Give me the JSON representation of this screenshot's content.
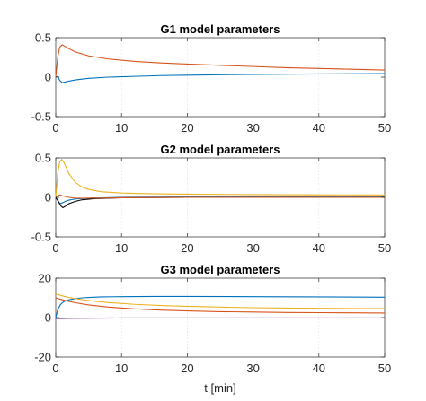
{
  "chart_data": [
    {
      "type": "line",
      "title": "G1 model parameters",
      "xlabel": "",
      "ylabel": "",
      "xlim": [
        0,
        50
      ],
      "ylim": [
        -0.5,
        0.5
      ],
      "xticks": [
        0,
        10,
        20,
        30,
        40,
        50
      ],
      "yticks": [
        -0.5,
        0,
        0.5
      ],
      "xtick_labels": [
        "0",
        "10",
        "20",
        "30",
        "40",
        "50"
      ],
      "ytick_labels": [
        "-0.5",
        "0",
        "0.5"
      ],
      "grid": "vertical",
      "series": [
        {
          "color": "#D95319",
          "x": [
            0,
            0.3,
            0.6,
            1,
            1.4,
            2,
            3,
            5,
            8,
            12,
            16,
            20,
            25,
            30,
            35,
            40,
            45,
            50
          ],
          "y": [
            0,
            0.25,
            0.38,
            0.41,
            0.39,
            0.36,
            0.32,
            0.27,
            0.23,
            0.2,
            0.18,
            0.165,
            0.15,
            0.135,
            0.12,
            0.11,
            0.1,
            0.09
          ]
        },
        {
          "color": "#0072BD",
          "x": [
            0,
            0.3,
            0.6,
            1,
            1.5,
            2,
            3,
            5,
            8,
            12,
            16,
            20,
            30,
            40,
            50
          ],
          "y": [
            0,
            0.01,
            -0.04,
            -0.07,
            -0.06,
            -0.05,
            -0.035,
            -0.015,
            0,
            0.01,
            0.02,
            0.025,
            0.035,
            0.04,
            0.045
          ]
        }
      ]
    },
    {
      "type": "line",
      "title": "G2 model parameters",
      "xlabel": "",
      "ylabel": "",
      "xlim": [
        0,
        50
      ],
      "ylim": [
        -0.5,
        0.5
      ],
      "xticks": [
        0,
        10,
        20,
        30,
        40,
        50
      ],
      "yticks": [
        -0.5,
        0,
        0.5
      ],
      "xtick_labels": [
        "0",
        "10",
        "20",
        "30",
        "40",
        "50"
      ],
      "ytick_labels": [
        "-0.5",
        "0",
        "0.5"
      ],
      "grid": "vertical",
      "series": [
        {
          "color": "#EDB120",
          "x": [
            0,
            0.3,
            0.6,
            0.9,
            1.2,
            1.6,
            2,
            3,
            4,
            5,
            7,
            10,
            15,
            20,
            30,
            40,
            50
          ],
          "y": [
            0,
            0.3,
            0.45,
            0.48,
            0.45,
            0.38,
            0.3,
            0.19,
            0.13,
            0.1,
            0.07,
            0.055,
            0.045,
            0.04,
            0.035,
            0.032,
            0.03
          ]
        },
        {
          "color": "#0072BD",
          "x": [
            0,
            0.3,
            0.6,
            1,
            1.5,
            2,
            3,
            5,
            10,
            20,
            50
          ],
          "y": [
            0,
            -0.04,
            -0.08,
            -0.07,
            -0.05,
            -0.035,
            -0.02,
            -0.01,
            0,
            0.005,
            0.01
          ]
        },
        {
          "color": "#000000",
          "x": [
            0,
            0.4,
            0.8,
            1.1,
            1.5,
            2,
            3,
            4,
            6,
            10,
            20,
            50
          ],
          "y": [
            0,
            -0.05,
            -0.11,
            -0.13,
            -0.11,
            -0.08,
            -0.05,
            -0.03,
            -0.015,
            -0.005,
            0,
            0
          ]
        },
        {
          "color": "#D95319",
          "x": [
            0,
            0.3,
            0.6,
            1,
            1.5,
            2,
            3,
            5,
            10,
            20,
            50
          ],
          "y": [
            0,
            0.02,
            0.03,
            0.02,
            0.01,
            0,
            -0.01,
            -0.01,
            -0.005,
            0,
            0
          ]
        }
      ]
    },
    {
      "type": "line",
      "title": "G3 model parameters",
      "xlabel": "t [min]",
      "ylabel": "",
      "xlim": [
        0,
        50
      ],
      "ylim": [
        -20,
        20
      ],
      "xticks": [
        0,
        10,
        20,
        30,
        40,
        50
      ],
      "yticks": [
        -20,
        0,
        20
      ],
      "xtick_labels": [
        "0",
        "10",
        "20",
        "30",
        "40",
        "50"
      ],
      "ytick_labels": [
        "-20",
        "0",
        "20"
      ],
      "grid": "vertical",
      "series": [
        {
          "color": "#0072BD",
          "x": [
            0,
            0.3,
            0.7,
            1,
            1.5,
            2,
            3,
            4,
            5,
            7,
            10,
            15,
            20,
            30,
            40,
            50
          ],
          "y": [
            0,
            4,
            6.5,
            7.5,
            8.5,
            9,
            9.6,
            10,
            10.2,
            10.5,
            10.6,
            10.7,
            10.7,
            10.6,
            10.5,
            10.3
          ]
        },
        {
          "color": "#EDB120",
          "x": [
            0,
            0.5,
            1,
            2,
            3,
            5,
            8,
            12,
            16,
            20,
            25,
            30,
            35,
            40,
            45,
            50
          ],
          "y": [
            12,
            11.5,
            11,
            10.2,
            9.6,
            8.6,
            7.6,
            6.7,
            6.1,
            5.7,
            5.3,
            5,
            4.8,
            4.7,
            4.6,
            4.5
          ]
        },
        {
          "color": "#D95319",
          "x": [
            0,
            0.5,
            1,
            2,
            3,
            5,
            8,
            12,
            16,
            20,
            25,
            30,
            35,
            40,
            45,
            50
          ],
          "y": [
            10,
            9.5,
            9,
            8.2,
            7.5,
            6.4,
            5.3,
            4.4,
            3.8,
            3.4,
            3,
            2.8,
            2.6,
            2.5,
            2.4,
            2.3
          ]
        },
        {
          "color": "#7E2F8E",
          "x": [
            0,
            1,
            2,
            5,
            10,
            20,
            30,
            40,
            50
          ],
          "y": [
            -0.5,
            -0.5,
            -0.4,
            -0.3,
            -0.2,
            -0.2,
            -0.2,
            -0.2,
            -0.2
          ]
        }
      ]
    }
  ]
}
